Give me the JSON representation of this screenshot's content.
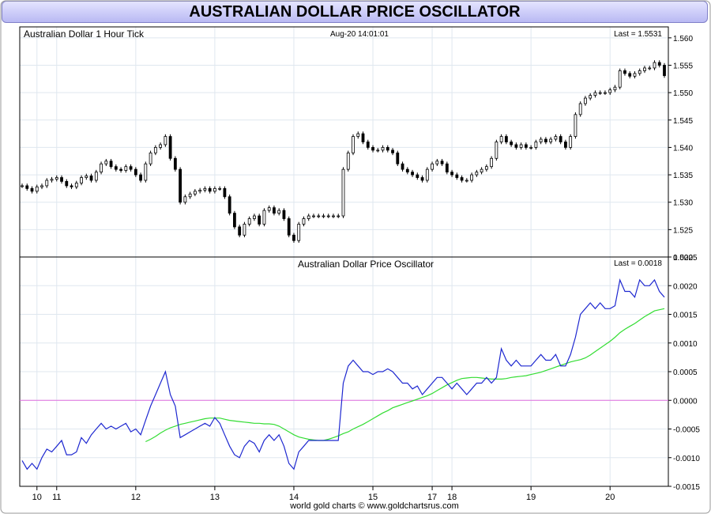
{
  "title": "AUSTRALIAN DOLLAR PRICE OSCILLATOR",
  "footer": "world gold charts © www.goldchartsrus.com",
  "colors": {
    "candle": "#000000",
    "oscillator": "#1e28d0",
    "signal": "#33dd33",
    "zero_line": "#e070e0",
    "grid": "#dfe7ef",
    "title_bg": "#c8c8f8"
  },
  "chart_data": [
    {
      "type": "candlestick",
      "title": "Australian Dollar 1 Hour Tick",
      "date_label": "Aug-20  14:01:01",
      "last_label": "Last = 1.5531",
      "ylim": [
        1.52,
        1.562
      ],
      "yticks": [
        "1.520",
        "1.525",
        "1.530",
        "1.535",
        "1.540",
        "1.545",
        "1.550",
        "1.555",
        "1.560"
      ],
      "x_ticks": [
        {
          "label": "10",
          "bar": 5
        },
        {
          "label": "11",
          "bar": 9
        },
        {
          "label": "12",
          "bar": 25
        },
        {
          "label": "13",
          "bar": 41
        },
        {
          "label": "14",
          "bar": 57
        },
        {
          "label": "15",
          "bar": 73
        },
        {
          "label": "17",
          "bar": 85
        },
        {
          "label": "18",
          "bar": 89
        },
        {
          "label": "19",
          "bar": 105
        },
        {
          "label": "20",
          "bar": 121
        }
      ],
      "bar_count": 131,
      "close_series": [
        1.533,
        1.5325,
        1.532,
        1.5328,
        1.533,
        1.534,
        1.5342,
        1.5345,
        1.5338,
        1.533,
        1.5328,
        1.5335,
        1.5345,
        1.5348,
        1.534,
        1.5355,
        1.537,
        1.5375,
        1.5365,
        1.536,
        1.5358,
        1.5365,
        1.536,
        1.535,
        1.534,
        1.537,
        1.539,
        1.54,
        1.5405,
        1.542,
        1.538,
        1.536,
        1.53,
        1.531,
        1.5315,
        1.532,
        1.5322,
        1.5325,
        1.532,
        1.5325,
        1.5325,
        1.531,
        1.528,
        1.5255,
        1.524,
        1.526,
        1.527,
        1.5275,
        1.526,
        1.5285,
        1.529,
        1.528,
        1.5285,
        1.527,
        1.524,
        1.523,
        1.526,
        1.527,
        1.5275,
        1.5275,
        1.5275,
        1.5275,
        1.5275,
        1.5275,
        1.5275,
        1.536,
        1.539,
        1.542,
        1.5425,
        1.541,
        1.54,
        1.5395,
        1.5395,
        1.54,
        1.5395,
        1.539,
        1.537,
        1.536,
        1.5355,
        1.535,
        1.5345,
        1.534,
        1.536,
        1.537,
        1.5375,
        1.537,
        1.5355,
        1.535,
        1.5345,
        1.534,
        1.534,
        1.535,
        1.5355,
        1.536,
        1.5365,
        1.538,
        1.541,
        1.542,
        1.541,
        1.5405,
        1.54,
        1.5405,
        1.54,
        1.54,
        1.541,
        1.5415,
        1.541,
        1.5415,
        1.542,
        1.541,
        1.54,
        1.542,
        1.546,
        1.548,
        1.549,
        1.5495,
        1.55,
        1.55,
        1.55,
        1.5505,
        1.551,
        1.554,
        1.5535,
        1.553,
        1.5535,
        1.554,
        1.5545,
        1.5545,
        1.5555,
        1.555,
        1.5531
      ]
    },
    {
      "type": "line",
      "title": "Australian Dollar Price Oscillator",
      "last_label": "Last = 0.0018",
      "ylim": [
        -0.0015,
        0.0025
      ],
      "yticks": [
        "-0.0015",
        "-0.0010",
        "-0.0005",
        "0.0000",
        "0.0005",
        "0.0010",
        "0.0015",
        "0.0020",
        "0.0025"
      ],
      "zero_value": 0,
      "series": [
        {
          "values": [
            -0.00105,
            -0.0012,
            -0.0011,
            -0.0012,
            -0.001,
            -0.00085,
            -0.0009,
            -0.0008,
            -0.0007,
            -0.00095,
            -0.00095,
            -0.0009,
            -0.00065,
            -0.00075,
            -0.0006,
            -0.0005,
            -0.0004,
            -0.0005,
            -0.00045,
            -0.0005,
            -0.00045,
            -0.0004,
            -0.00055,
            -0.0005,
            -0.0006,
            -0.00035,
            -0.0001,
            0.0001,
            0.0003,
            0.0005,
            0.0001,
            -0.0001,
            -0.00065,
            -0.0006,
            -0.00055,
            -0.0005,
            -0.00045,
            -0.0004,
            -0.00045,
            -0.0003,
            -0.0004,
            -0.0006,
            -0.0008,
            -0.00095,
            -0.001,
            -0.0008,
            -0.0007,
            -0.00075,
            -0.0009,
            -0.0007,
            -0.0006,
            -0.0007,
            -0.0006,
            -0.0008,
            -0.0011,
            -0.0012,
            -0.0009,
            -0.0008,
            -0.0007,
            -0.0007,
            -0.0007,
            -0.0007,
            -0.0007,
            -0.0007,
            -0.0007,
            0.0003,
            0.0006,
            0.0007,
            0.0006,
            0.0005,
            0.0005,
            0.00045,
            0.0005,
            0.0005,
            0.00055,
            0.0005,
            0.0004,
            0.0003,
            0.0003,
            0.0002,
            0.00025,
            0.0001,
            0.0002,
            0.0003,
            0.0004,
            0.0004,
            0.0003,
            0.0002,
            0.0003,
            0.0002,
            0.0001,
            0.0002,
            0.0003,
            0.0003,
            0.0004,
            0.0003,
            0.0004,
            0.0009,
            0.0007,
            0.0006,
            0.0007,
            0.0006,
            0.0006,
            0.0006,
            0.0007,
            0.0008,
            0.0007,
            0.0007,
            0.0008,
            0.0006,
            0.0006,
            0.0008,
            0.0011,
            0.0015,
            0.0016,
            0.0017,
            0.0016,
            0.0017,
            0.0016,
            0.0016,
            0.00165,
            0.0021,
            0.0019,
            0.0019,
            0.0018,
            0.0021,
            0.002,
            0.002,
            0.0021,
            0.0019,
            0.0018
          ]
        },
        {
          "start_bar": 25,
          "values": [
            -0.00072,
            -0.00068,
            -0.00063,
            -0.00057,
            -0.00052,
            -0.00048,
            -0.00045,
            -0.00042,
            -0.0004,
            -0.00038,
            -0.00036,
            -0.00034,
            -0.00032,
            -0.00031,
            -0.00031,
            -0.00031,
            -0.00033,
            -0.00035,
            -0.00036,
            -0.00037,
            -0.00038,
            -0.00039,
            -0.0004,
            -0.0004,
            -0.00041,
            -0.00041,
            -0.00042,
            -0.00045,
            -0.0005,
            -0.00055,
            -0.0006,
            -0.00064,
            -0.00066,
            -0.00068,
            -0.00069,
            -0.0007,
            -0.0007,
            -0.00068,
            -0.00065,
            -0.00062,
            -0.00058,
            -0.00055,
            -0.0005,
            -0.00046,
            -0.00042,
            -0.00037,
            -0.00032,
            -0.00027,
            -0.00022,
            -0.00018,
            -0.00013,
            -0.0001,
            -7e-05,
            -4e-05,
            -1e-05,
            2e-05,
            5e-05,
            8e-05,
            0.00012,
            0.00017,
            0.00022,
            0.00027,
            0.00031,
            0.00035,
            0.00038,
            0.00039,
            0.0004,
            0.0004,
            0.00039,
            0.00038,
            0.00037,
            0.00037,
            0.00037,
            0.00038,
            0.0004,
            0.00041,
            0.00042,
            0.00043,
            0.00045,
            0.00047,
            0.00049,
            0.00052,
            0.00055,
            0.00058,
            0.00061,
            0.00064,
            0.00067,
            0.00069,
            0.00071,
            0.00074,
            0.00079,
            0.00085,
            0.00091,
            0.00097,
            0.00103,
            0.0011,
            0.00118,
            0.00124,
            0.00129,
            0.00134,
            0.0014,
            0.00146,
            0.00151,
            0.00156,
            0.00158,
            0.0016
          ]
        }
      ]
    }
  ]
}
